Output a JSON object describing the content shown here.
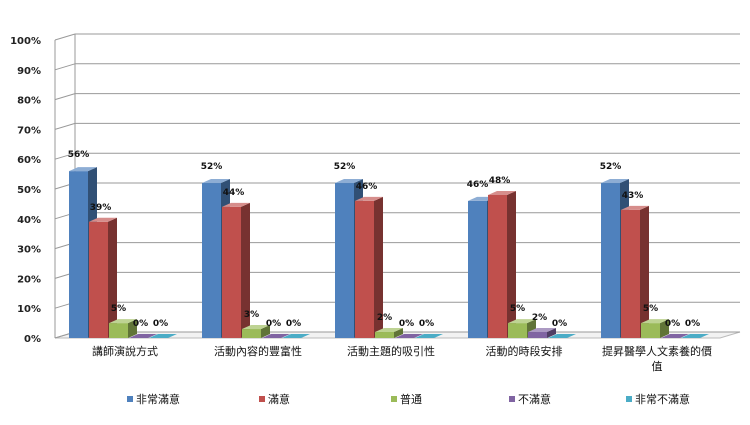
{
  "chart_data": {
    "type": "bar",
    "categories": [
      "講師演說方式",
      "活動內容的豐富性",
      "活動主題的吸引性",
      "活動的時段安排",
      "提昇醫學人文素養的價\n值"
    ],
    "series": [
      {
        "name": "非常滿意",
        "color": "#4F81BD",
        "values": [
          56,
          52,
          52,
          46,
          52
        ]
      },
      {
        "name": "滿意",
        "color": "#C0504D",
        "values": [
          39,
          44,
          46,
          48,
          43
        ]
      },
      {
        "name": "普通",
        "color": "#9BBB59",
        "values": [
          5,
          3,
          2,
          5,
          5
        ]
      },
      {
        "name": "不滿意",
        "color": "#8064A2",
        "values": [
          0,
          0,
          0,
          2,
          0
        ]
      },
      {
        "name": "非常不滿意",
        "color": "#4BACC6",
        "values": [
          0,
          0,
          0,
          0,
          0
        ]
      }
    ],
    "y_ticks": [
      "0%",
      "10%",
      "20%",
      "30%",
      "40%",
      "50%",
      "60%",
      "70%",
      "80%",
      "90%",
      "100%"
    ],
    "ylim": [
      0,
      100
    ],
    "unit": "%",
    "legend_position": "bottom",
    "grid": true
  }
}
